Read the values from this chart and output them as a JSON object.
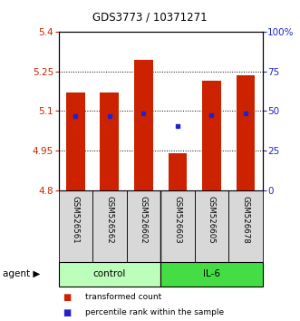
{
  "title": "GDS3773 / 10371271",
  "samples": [
    "GSM526561",
    "GSM526562",
    "GSM526602",
    "GSM526603",
    "GSM526605",
    "GSM526678"
  ],
  "groups": [
    "control",
    "control",
    "control",
    "IL-6",
    "IL-6",
    "IL-6"
  ],
  "bar_bottoms": [
    4.8,
    4.8,
    4.8,
    4.8,
    4.8,
    4.8
  ],
  "bar_tops": [
    5.17,
    5.17,
    5.295,
    4.938,
    5.215,
    5.235
  ],
  "blue_values": [
    5.082,
    5.082,
    5.092,
    5.042,
    5.086,
    5.09
  ],
  "ylim": [
    4.8,
    5.4
  ],
  "yticks_left": [
    4.8,
    4.95,
    5.1,
    5.25,
    5.4
  ],
  "yticks_right_vals": [
    0,
    25,
    50,
    75,
    100
  ],
  "yticks_right_labels": [
    "0",
    "25",
    "50",
    "75",
    "100%"
  ],
  "gridlines": [
    4.95,
    5.1,
    5.25
  ],
  "bar_color": "#cc2200",
  "blue_color": "#2222cc",
  "bar_width": 0.55,
  "group_colors_control": "#bbffbb",
  "group_colors_il6": "#44dd44",
  "left_label_color": "#cc2200",
  "right_label_color": "#2222cc",
  "title_color": "#000000"
}
